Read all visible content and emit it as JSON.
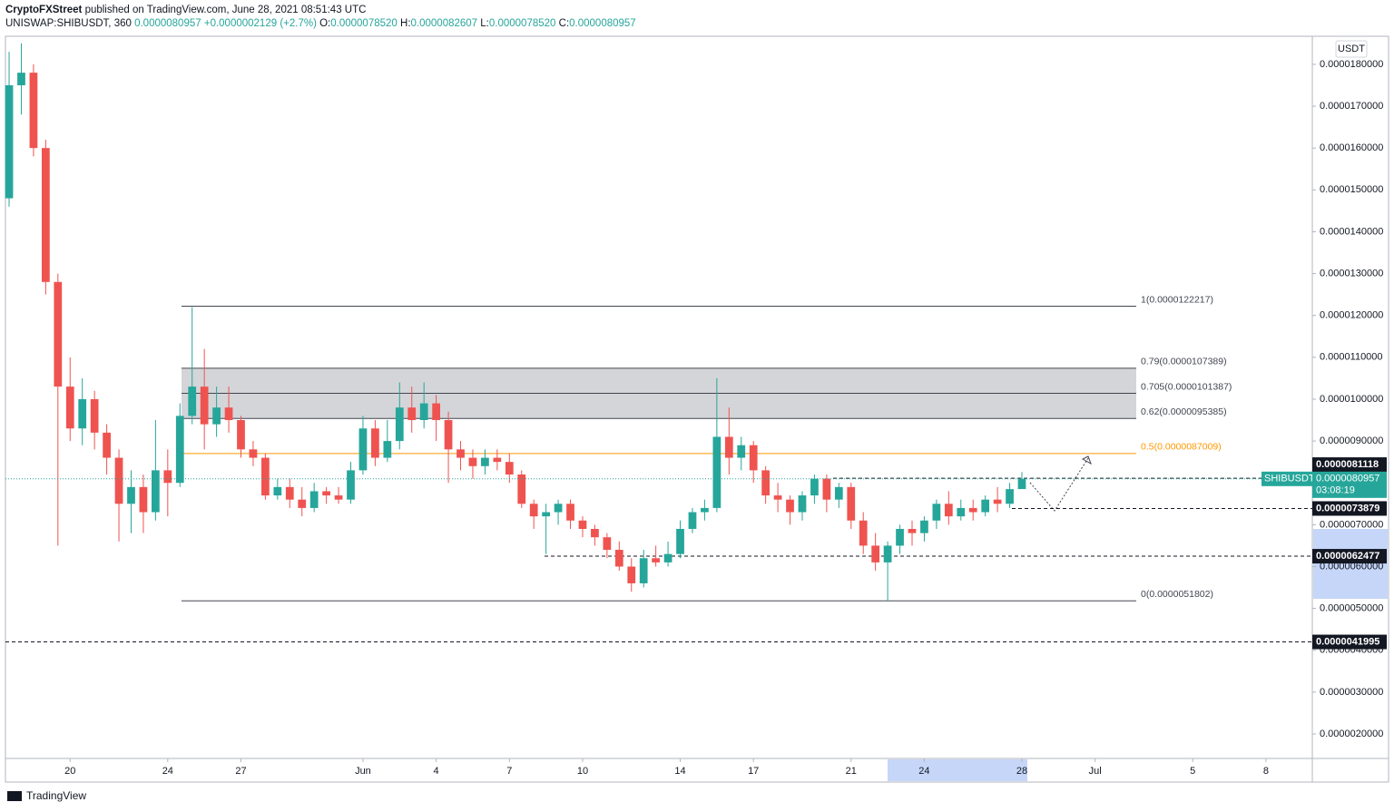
{
  "header": {
    "author": "CryptoFXStreet",
    "published": "published on TradingView.com, June 28, 2021 08:51:43 UTC",
    "symbol": "UNISWAP:SHIBUSDT, 360",
    "last": "0.0000080957",
    "change": "+0.0000002129 (+2.7%)",
    "o_label": "O:",
    "o": "0.0000078520",
    "h_label": "H:",
    "h": "0.0000082607",
    "l_label": "L:",
    "l": "0.0000078520",
    "c_label": "C:",
    "c": "0.0000080957"
  },
  "chart_data": {
    "type": "candlestick",
    "currency": "USDT",
    "up_color": "#26a69a",
    "down_color": "#ef5350",
    "open": [
      1.48e-05,
      1.75e-05,
      1.78e-05,
      1.6e-05,
      1.28e-05,
      1.03e-05,
      9.3e-06,
      1e-05,
      9.2e-06,
      8.6e-06,
      7.5e-06,
      7.9e-06,
      7.3e-06,
      8.3e-06,
      8e-06,
      9.6e-06,
      1.03e-05,
      9.4e-06,
      9.8e-06,
      9.5e-06,
      8.8e-06,
      8.6e-06,
      7.7e-06,
      7.9e-06,
      7.6e-06,
      7.4e-06,
      7.8e-06,
      7.7e-06,
      7.6e-06,
      8.3e-06,
      9.3e-06,
      8.6e-06,
      9e-06,
      9.8e-06,
      9.5e-06,
      9.9e-06,
      9.5e-06,
      8.8e-06,
      8.6e-06,
      8.4e-06,
      8.6e-06,
      8.5e-06,
      8.2e-06,
      7.5e-06,
      7.2e-06,
      7.3e-06,
      7.5e-06,
      7.1e-06,
      6.9e-06,
      6.7e-06,
      6.4e-06,
      6e-06,
      5.6e-06,
      6.2e-06,
      6.1e-06,
      6.3e-06,
      6.9e-06,
      7.3e-06,
      7.4e-06,
      9.1e-06,
      8.6e-06,
      8.9e-06,
      8.3e-06,
      7.7e-06,
      7.6e-06,
      7.3e-06,
      7.7e-06,
      8.1e-06,
      7.6e-06,
      7.9e-06,
      7.1e-06,
      6.5e-06,
      6.1e-06,
      6.5e-06,
      6.9e-06,
      6.8e-06,
      7.1e-06,
      7.5e-06,
      7.2e-06,
      7.4e-06,
      7.3e-06,
      7.6e-06,
      7.5e-06,
      7.852e-06
    ],
    "high": [
      1.83e-05,
      1.85e-05,
      1.8e-05,
      1.62e-05,
      1.3e-05,
      1.1e-05,
      1.05e-05,
      1.02e-05,
      9.4e-06,
      8.8e-06,
      8.3e-06,
      8.2e-06,
      9.5e-06,
      8.8e-06,
      9.9e-06,
      1.22e-05,
      1.12e-05,
      1.03e-05,
      1.03e-05,
      9.6e-06,
      9e-06,
      8.7e-06,
      8.1e-06,
      8.1e-06,
      7.9e-06,
      8e-06,
      7.9e-06,
      7.9e-06,
      8.5e-06,
      9.6e-06,
      9.5e-06,
      9.5e-06,
      1.04e-05,
      1.03e-05,
      1.04e-05,
      1.01e-05,
      9.7e-06,
      9e-06,
      8.8e-06,
      8.8e-06,
      8.8e-06,
      8.7e-06,
      8.3e-06,
      7.6e-06,
      7.5e-06,
      7.6e-06,
      7.6e-06,
      7.2e-06,
      7e-06,
      6.8e-06,
      6.6e-06,
      6.2e-06,
      6.4e-06,
      6.5e-06,
      6.6e-06,
      7.1e-06,
      7.4e-06,
      7.6e-06,
      1.05e-05,
      9.8e-06,
      9.1e-06,
      9e-06,
      8.4e-06,
      8e-06,
      7.7e-06,
      7.8e-06,
      8.2e-06,
      8.2e-06,
      8e-06,
      8e-06,
      7.3e-06,
      6.8e-06,
      6.6e-06,
      7e-06,
      7.1e-06,
      7.2e-06,
      7.6e-06,
      7.8e-06,
      7.6e-06,
      7.6e-06,
      7.7e-06,
      7.9e-06,
      8e-06,
      8.2607e-06
    ],
    "low": [
      1.46e-05,
      1.68e-05,
      1.58e-05,
      1.25e-05,
      6.5e-06,
      9e-06,
      8.9e-06,
      8.8e-06,
      8.2e-06,
      6.6e-06,
      6.8e-06,
      6.8e-06,
      7.1e-06,
      7.2e-06,
      7.9e-06,
      9.4e-06,
      8.8e-06,
      9.1e-06,
      9.2e-06,
      8.6e-06,
      8.4e-06,
      7.6e-06,
      7.6e-06,
      7.4e-06,
      7.2e-06,
      7.3e-06,
      7.5e-06,
      7.5e-06,
      7.5e-06,
      8.2e-06,
      8.4e-06,
      8.5e-06,
      8.8e-06,
      9.2e-06,
      9.3e-06,
      9e-06,
      8e-06,
      8.3e-06,
      8.1e-06,
      8.2e-06,
      8.3e-06,
      8e-06,
      7.4e-06,
      6.9e-06,
      6.3e-06,
      7e-06,
      6.9e-06,
      6.7e-06,
      6.5e-06,
      6.2e-06,
      5.9e-06,
      5.4e-06,
      5.5e-06,
      6e-06,
      6e-06,
      6.2e-06,
      6.8e-06,
      7.1e-06,
      7.3e-06,
      8.2e-06,
      8.3e-06,
      8e-06,
      7.5e-06,
      7.3e-06,
      7e-06,
      7.1e-06,
      7.5e-06,
      7.3e-06,
      7.4e-06,
      6.9e-06,
      6.3e-06,
      5.9e-06,
      5.18e-06,
      6.3e-06,
      6.5e-06,
      6.6e-06,
      6.9e-06,
      7e-06,
      7.1e-06,
      7.1e-06,
      7.2e-06,
      7.3e-06,
      7.4e-06,
      7.852e-06
    ],
    "close": [
      1.75e-05,
      1.78e-05,
      1.6e-05,
      1.28e-05,
      1.03e-05,
      9.3e-06,
      1e-05,
      9.2e-06,
      8.6e-06,
      7.5e-06,
      7.9e-06,
      7.3e-06,
      8.3e-06,
      8e-06,
      9.6e-06,
      1.03e-05,
      9.4e-06,
      9.8e-06,
      9.5e-06,
      8.8e-06,
      8.6e-06,
      7.7e-06,
      7.9e-06,
      7.6e-06,
      7.4e-06,
      7.8e-06,
      7.7e-06,
      7.6e-06,
      8.3e-06,
      9.3e-06,
      8.6e-06,
      9e-06,
      9.8e-06,
      9.5e-06,
      9.9e-06,
      9.5e-06,
      8.8e-06,
      8.6e-06,
      8.4e-06,
      8.6e-06,
      8.5e-06,
      8.2e-06,
      7.5e-06,
      7.2e-06,
      7.3e-06,
      7.5e-06,
      7.1e-06,
      6.9e-06,
      6.7e-06,
      6.4e-06,
      6e-06,
      5.6e-06,
      6.2e-06,
      6.1e-06,
      6.3e-06,
      6.9e-06,
      7.3e-06,
      7.4e-06,
      9.1e-06,
      8.6e-06,
      8.9e-06,
      8.3e-06,
      7.7e-06,
      7.6e-06,
      7.3e-06,
      7.7e-06,
      8.1e-06,
      7.6e-06,
      7.9e-06,
      7.1e-06,
      6.5e-06,
      6.1e-06,
      6.5e-06,
      6.9e-06,
      6.8e-06,
      7.1e-06,
      7.5e-06,
      7.2e-06,
      7.4e-06,
      7.3e-06,
      7.6e-06,
      7.5e-06,
      7.85e-06,
      8.0957e-06
    ],
    "xlim": [
      -0.3,
      106.8
    ],
    "xticks": [
      {
        "value": 5,
        "label": "20"
      },
      {
        "value": 13,
        "label": "24"
      },
      {
        "value": 19,
        "label": "27"
      },
      {
        "value": 29,
        "label": "Jun"
      },
      {
        "value": 35,
        "label": "4"
      },
      {
        "value": 41,
        "label": "7"
      },
      {
        "value": 47,
        "label": "10"
      },
      {
        "value": 55,
        "label": "14"
      },
      {
        "value": 61,
        "label": "17"
      },
      {
        "value": 69,
        "label": "21"
      },
      {
        "value": 75,
        "label": "24"
      },
      {
        "value": 83,
        "label": "28"
      },
      {
        "value": 89,
        "label": "Jul"
      },
      {
        "value": 97,
        "label": "5"
      },
      {
        "value": 103,
        "label": "8"
      }
    ],
    "ylim": [
      1.415e-06,
      1.867e-05
    ],
    "yticks": [
      {
        "value": 2e-06,
        "label": "0.0000020000"
      },
      {
        "value": 3e-06,
        "label": "0.0000030000"
      },
      {
        "value": 4e-06,
        "label": "0.0000040000"
      },
      {
        "value": 5e-06,
        "label": "0.0000050000"
      },
      {
        "value": 6e-06,
        "label": "0.0000060000"
      },
      {
        "value": 7e-06,
        "label": "0.0000070000"
      },
      {
        "value": 8e-06,
        "label": "0.0000080000"
      },
      {
        "value": 9e-06,
        "label": "0.0000090000"
      },
      {
        "value": 1e-05,
        "label": "0.0000100000"
      },
      {
        "value": 1.1e-05,
        "label": "0.0000110000"
      },
      {
        "value": 1.2e-05,
        "label": "0.0000120000"
      },
      {
        "value": 1.3e-05,
        "label": "0.0000130000"
      },
      {
        "value": 1.4e-05,
        "label": "0.0000140000"
      },
      {
        "value": 1.5e-05,
        "label": "0.0000150000"
      },
      {
        "value": 1.6e-05,
        "label": "0.0000160000"
      },
      {
        "value": 1.7e-05,
        "label": "0.0000170000"
      },
      {
        "value": 1.8e-05,
        "label": "0.0000180000"
      }
    ],
    "fib_levels": [
      {
        "value": 1.22217e-05,
        "label": "1(0.0000122217)",
        "color": "#434651"
      },
      {
        "value": 1.07389e-05,
        "label": "0.79(0.0000107389)",
        "color": "#434651"
      },
      {
        "value": 1.01387e-05,
        "label": "0.705(0.0000101387)",
        "color": "#434651"
      },
      {
        "value": 9.5385e-06,
        "label": "0.62(0.0000095385)",
        "color": "#434651"
      },
      {
        "value": 8.7009e-06,
        "label": "0.5(0.0000087009)",
        "color": "#ff9800"
      },
      {
        "value": 5.1802e-06,
        "label": "0(0.0000051802)",
        "color": "#434651"
      }
    ],
    "levels": [
      {
        "value": 8.1118e-06,
        "label": "0.0000081118"
      },
      {
        "value": 7.3879e-06,
        "label": "0.0000073879"
      },
      {
        "value": 6.2477e-06,
        "label": "0.0000062477"
      },
      {
        "value": 4.1995e-06,
        "label": "0.0000041995"
      }
    ],
    "last_price": {
      "symbol": "SHIBUSDT",
      "value": 8.0957e-06,
      "label": "0.0000080957",
      "countdown": "03:08:19"
    }
  },
  "footer": "TradingView"
}
